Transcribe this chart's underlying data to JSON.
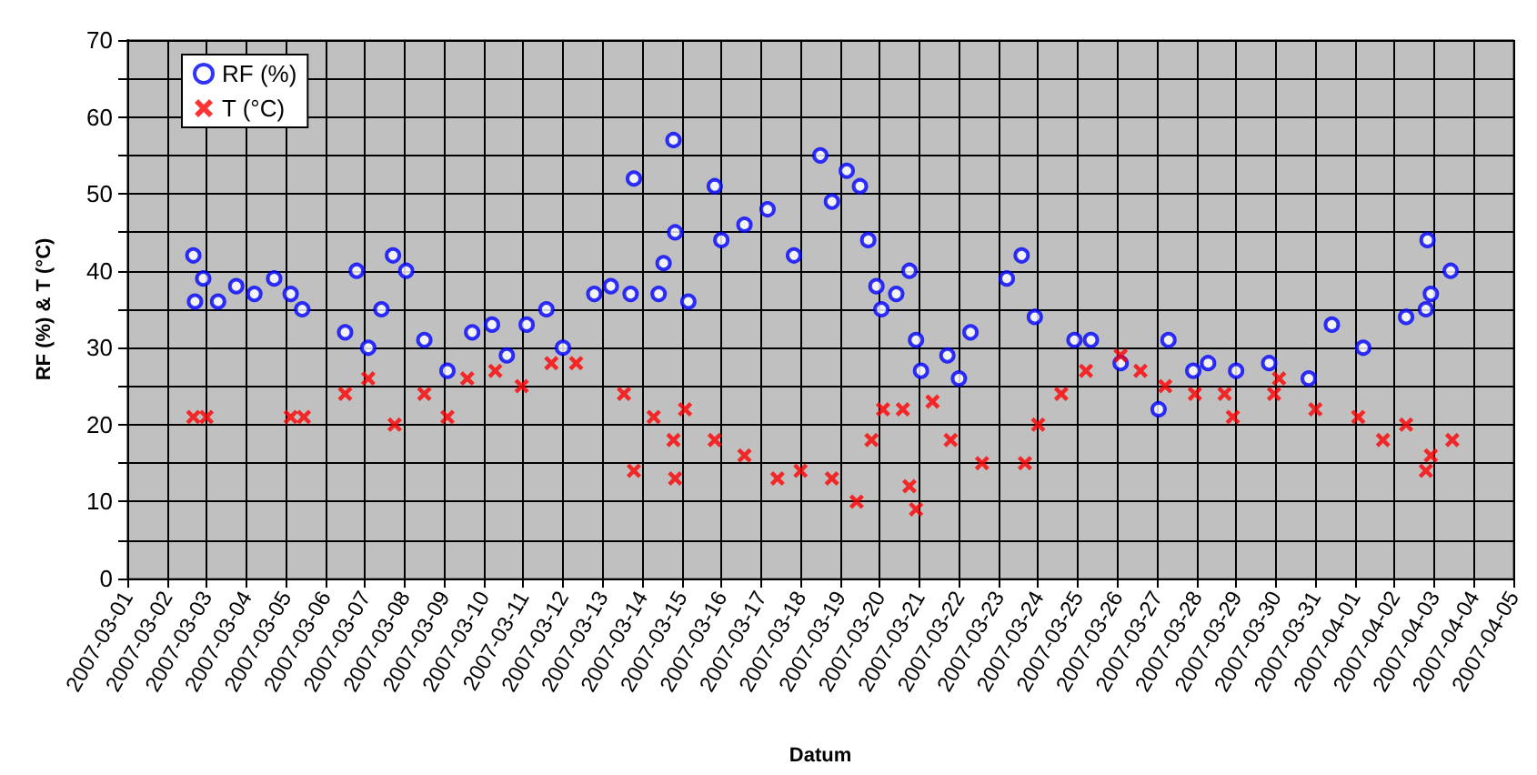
{
  "chart_data": {
    "type": "scatter",
    "xlabel": "Datum",
    "ylabel": "RF (%) & T (°C)",
    "xlim": [
      "2007-03-01",
      "2007-04-05"
    ],
    "xticks": [
      "2007-03-01",
      "2007-03-02",
      "2007-03-03",
      "2007-03-04",
      "2007-03-05",
      "2007-03-06",
      "2007-03-07",
      "2007-03-08",
      "2007-03-09",
      "2007-03-10",
      "2007-03-11",
      "2007-03-12",
      "2007-03-13",
      "2007-03-14",
      "2007-03-15",
      "2007-03-16",
      "2007-03-17",
      "2007-03-18",
      "2007-03-19",
      "2007-03-20",
      "2007-03-21",
      "2007-03-22",
      "2007-03-23",
      "2007-03-24",
      "2007-03-25",
      "2007-03-26",
      "2007-03-27",
      "2007-03-28",
      "2007-03-29",
      "2007-03-30",
      "2007-03-31",
      "2007-04-01",
      "2007-04-02",
      "2007-04-03",
      "2007-04-04",
      "2007-04-05"
    ],
    "ylim": [
      0,
      70
    ],
    "yticks": [
      0,
      {
        "value": 5,
        "label": null
      },
      10,
      {
        "value": 15,
        "label": null
      },
      20,
      {
        "value": 25,
        "label": null
      },
      30,
      {
        "value": 35,
        "label": null
      },
      40,
      {
        "value": 45,
        "label": null
      },
      50,
      {
        "value": 55,
        "label": null
      },
      60,
      {
        "value": 65,
        "label": null
      },
      70
    ],
    "grid": true,
    "legend": "top left",
    "series": [
      {
        "name": "RF (%)",
        "color": "#0000ff",
        "marker": "circle",
        "x": [
          "2007-03-02T16:00",
          "2007-03-02T17:00",
          "2007-03-02T22:00",
          "2007-03-03T07:00",
          "2007-03-03T18:00",
          "2007-03-04T05:00",
          "2007-03-04T17:00",
          "2007-03-05T03:00",
          "2007-03-05T10:00",
          "2007-03-06T12:00",
          "2007-03-06T19:00",
          "2007-03-07T02:00",
          "2007-03-07T10:00",
          "2007-03-07T17:00",
          "2007-03-08T01:00",
          "2007-03-08T12:00",
          "2007-03-09T02:00",
          "2007-03-09T17:00",
          "2007-03-10T05:00",
          "2007-03-10T14:00",
          "2007-03-11T02:00",
          "2007-03-11T14:00",
          "2007-03-12T00:00",
          "2007-03-12T19:00",
          "2007-03-13T05:00",
          "2007-03-13T17:00",
          "2007-03-13T19:00",
          "2007-03-14T10:00",
          "2007-03-14T13:00",
          "2007-03-14T19:00",
          "2007-03-14T20:00",
          "2007-03-15T04:00",
          "2007-03-15T20:00",
          "2007-03-16T00:00",
          "2007-03-16T14:00",
          "2007-03-17T04:00",
          "2007-03-17T20:00",
          "2007-03-18T12:00",
          "2007-03-18T19:00",
          "2007-03-19T04:00",
          "2007-03-19T12:00",
          "2007-03-19T17:00",
          "2007-03-19T22:00",
          "2007-03-20T01:00",
          "2007-03-20T10:00",
          "2007-03-20T18:00",
          "2007-03-20T22:00",
          "2007-03-21T01:00",
          "2007-03-21T17:00",
          "2007-03-22T00:00",
          "2007-03-22T07:00",
          "2007-03-23T05:00",
          "2007-03-23T14:00",
          "2007-03-23T22:00",
          "2007-03-24T22:00",
          "2007-03-25T08:00",
          "2007-03-26T02:00",
          "2007-03-27T01:00",
          "2007-03-27T07:00",
          "2007-03-27T22:00",
          "2007-03-28T07:00",
          "2007-03-29T00:00",
          "2007-03-29T20:00",
          "2007-03-30T20:00",
          "2007-03-31T10:00",
          "2007-04-01T05:00",
          "2007-04-02T07:00",
          "2007-04-02T19:00",
          "2007-04-02T20:00",
          "2007-04-02T22:00",
          "2007-04-03T10:00"
        ],
        "values": [
          42,
          36,
          39,
          36,
          38,
          37,
          39,
          37,
          35,
          32,
          40,
          30,
          35,
          42,
          40,
          31,
          27,
          32,
          33,
          29,
          33,
          35,
          30,
          37,
          38,
          37,
          52,
          37,
          41,
          57,
          45,
          36,
          51,
          44,
          46,
          48,
          42,
          55,
          49,
          53,
          51,
          44,
          38,
          35,
          37,
          40,
          31,
          27,
          29,
          26,
          32,
          39,
          42,
          34,
          31,
          31,
          28,
          22,
          31,
          27,
          28,
          27,
          28,
          26,
          33,
          30,
          34,
          35,
          44,
          37,
          40
        ]
      },
      {
        "name": "T (°C)",
        "color": "#ff0000",
        "marker": "cross",
        "x": [
          "2007-03-02T16:00",
          "2007-03-03T00:00",
          "2007-03-05T03:00",
          "2007-03-05T11:00",
          "2007-03-06T12:00",
          "2007-03-07T02:00",
          "2007-03-07T18:00",
          "2007-03-08T12:00",
          "2007-03-09T02:00",
          "2007-03-09T14:00",
          "2007-03-10T07:00",
          "2007-03-10T23:00",
          "2007-03-11T17:00",
          "2007-03-12T08:00",
          "2007-03-13T13:00",
          "2007-03-13T19:00",
          "2007-03-14T07:00",
          "2007-03-14T19:00",
          "2007-03-14T20:00",
          "2007-03-15T02:00",
          "2007-03-15T20:00",
          "2007-03-16T14:00",
          "2007-03-17T10:00",
          "2007-03-18T00:00",
          "2007-03-18T19:00",
          "2007-03-19T10:00",
          "2007-03-19T19:00",
          "2007-03-20T02:00",
          "2007-03-20T14:00",
          "2007-03-20T18:00",
          "2007-03-20T22:00",
          "2007-03-21T08:00",
          "2007-03-21T19:00",
          "2007-03-22T14:00",
          "2007-03-23T16:00",
          "2007-03-24T00:00",
          "2007-03-24T14:00",
          "2007-03-25T05:00",
          "2007-03-26T02:00",
          "2007-03-26T14:00",
          "2007-03-27T05:00",
          "2007-03-27T23:00",
          "2007-03-28T17:00",
          "2007-03-28T22:00",
          "2007-03-29T23:00",
          "2007-03-30T02:00",
          "2007-03-31T00:00",
          "2007-04-01T02:00",
          "2007-04-01T17:00",
          "2007-04-02T07:00",
          "2007-04-02T19:00",
          "2007-04-02T22:00",
          "2007-04-03T11:00"
        ],
        "values": [
          21,
          21,
          21,
          21,
          24,
          26,
          20,
          24,
          21,
          26,
          27,
          25,
          28,
          28,
          24,
          14,
          21,
          18,
          13,
          22,
          18,
          16,
          13,
          14,
          13,
          10,
          18,
          22,
          22,
          12,
          9,
          23,
          18,
          15,
          15,
          20,
          24,
          27,
          29,
          27,
          25,
          24,
          24,
          21,
          24,
          26,
          22,
          21,
          18,
          20,
          14,
          16,
          18
        ]
      }
    ]
  }
}
